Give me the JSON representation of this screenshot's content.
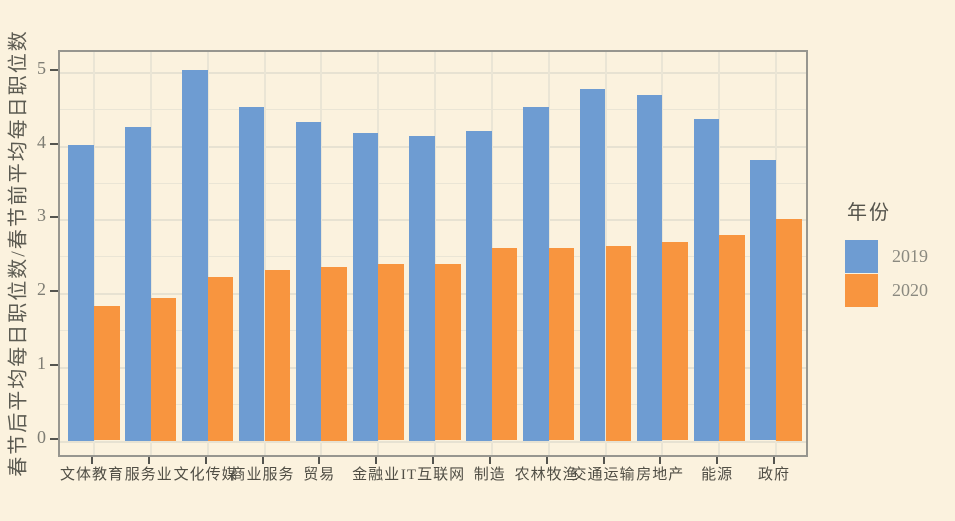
{
  "colors": {
    "background": "#FBF2DE",
    "gridline": "#EAE5D5",
    "panel_border": "#97968F",
    "tick_mark": "#55554F",
    "tick_label": "#7E7D74",
    "category_label": "#504E45",
    "axis_title": "#5C5B52",
    "legend_title_color": "#55544C",
    "legend_label_color": "#8B8A80"
  },
  "chart_data": {
    "type": "bar",
    "title": "",
    "xlabel": "",
    "ylabel": "春节后平均每日职位数/春节前平均每日职位数",
    "categories": [
      "文体教育",
      "服务业",
      "文化传媒",
      "商业服务",
      "贸易",
      "金融业",
      "IT互联网",
      "制造",
      "农林牧渔",
      "交通运输",
      "房地产",
      "能源",
      "政府"
    ],
    "series": [
      {
        "name": "2019",
        "color": "#6E9CD2",
        "values": [
          4.01,
          4.26,
          5.03,
          4.52,
          4.32,
          4.17,
          4.13,
          4.2,
          4.53,
          4.77,
          4.69,
          4.36,
          3.81
        ]
      },
      {
        "name": "2020",
        "color": "#F8953F",
        "values": [
          1.83,
          1.94,
          2.22,
          2.32,
          2.35,
          2.39,
          2.39,
          2.61,
          2.61,
          2.64,
          2.69,
          2.79,
          3.0
        ]
      }
    ],
    "yticks": [
      0,
      1,
      2,
      3,
      4,
      5
    ],
    "ylim": [
      -0.25,
      5.27
    ],
    "grid": "horizontal major at integers, minor at halves; vertical at category centers",
    "legend": {
      "title": "年份",
      "position": "right"
    }
  }
}
